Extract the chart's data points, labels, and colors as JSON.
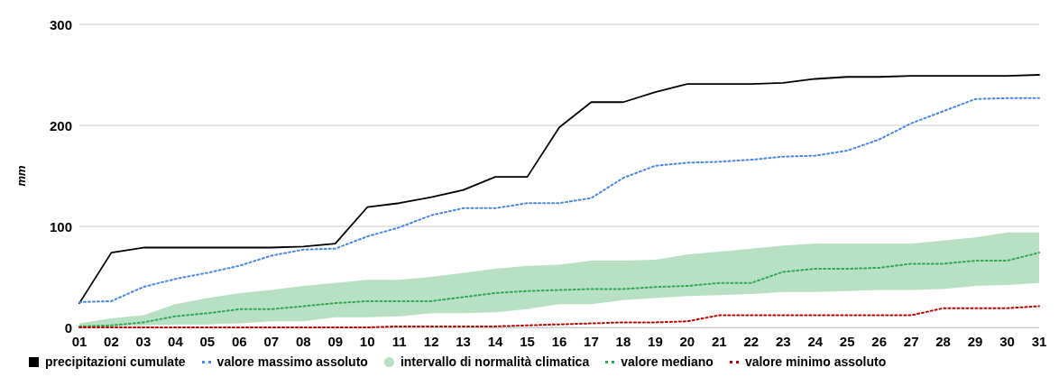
{
  "chart_data": {
    "type": "line",
    "ylabel": "mm",
    "categories": [
      "01",
      "02",
      "03",
      "04",
      "05",
      "06",
      "07",
      "08",
      "09",
      "10",
      "11",
      "12",
      "13",
      "14",
      "15",
      "16",
      "17",
      "18",
      "19",
      "20",
      "21",
      "22",
      "23",
      "24",
      "25",
      "26",
      "27",
      "28",
      "29",
      "30",
      "31"
    ],
    "ylim": [
      0,
      300
    ],
    "yticks": [
      0,
      100,
      200,
      300
    ],
    "grid": "y",
    "legend": "bottom",
    "marker": "none",
    "annotations": [
      "intervallo di normalità climatica"
    ],
    "series": [
      {
        "name": "precipitazioni cumulate",
        "color": "#000000",
        "line_style": "solid",
        "values": [
          24,
          74,
          79,
          79,
          79,
          79,
          79,
          80,
          83,
          119,
          123,
          129,
          136,
          149,
          149,
          198,
          223,
          223,
          233,
          241,
          241,
          241,
          242,
          246,
          248,
          248,
          249,
          249,
          249,
          249,
          250
        ]
      },
      {
        "name": "valore massimo assoluto",
        "color": "#4a86e8",
        "line_style": "dotted",
        "values": [
          25,
          26,
          40,
          48,
          54,
          61,
          71,
          77,
          78,
          90,
          99,
          111,
          118,
          118,
          123,
          123,
          128,
          148,
          160,
          163,
          164,
          166,
          169,
          170,
          175,
          186,
          202,
          214,
          226,
          227,
          227
        ]
      },
      {
        "name": "valore mediano",
        "color": "#34a853",
        "line_style": "dotted",
        "values": [
          1,
          2,
          5,
          11,
          14,
          18,
          18,
          21,
          24,
          26,
          26,
          26,
          30,
          34,
          36,
          37,
          38,
          38,
          40,
          41,
          44,
          44,
          55,
          58,
          58,
          59,
          63,
          63,
          66,
          66,
          74
        ],
        "lower": [
          0,
          1,
          2,
          3,
          3,
          4,
          6,
          6,
          10,
          10,
          11,
          14,
          14,
          15,
          18,
          23,
          23,
          27,
          29,
          31,
          32,
          33,
          35,
          35,
          36,
          37,
          37,
          38,
          41,
          42,
          44
        ],
        "upper": [
          4,
          9,
          12,
          23,
          29,
          34,
          37,
          41,
          44,
          47,
          47,
          50,
          54,
          58,
          61,
          62,
          66,
          66,
          67,
          72,
          75,
          78,
          81,
          83,
          83,
          83,
          83,
          86,
          89,
          94,
          94
        ]
      },
      {
        "name": "valore minimo assoluto",
        "color": "#c00000",
        "line_style": "dotted",
        "values": [
          0,
          0,
          0,
          0,
          0,
          0,
          0,
          0,
          0,
          0,
          1,
          1,
          1,
          1,
          2,
          3,
          4,
          5,
          5,
          6,
          12,
          12,
          12,
          12,
          12,
          12,
          12,
          19,
          19,
          19,
          21
        ]
      }
    ]
  }
}
